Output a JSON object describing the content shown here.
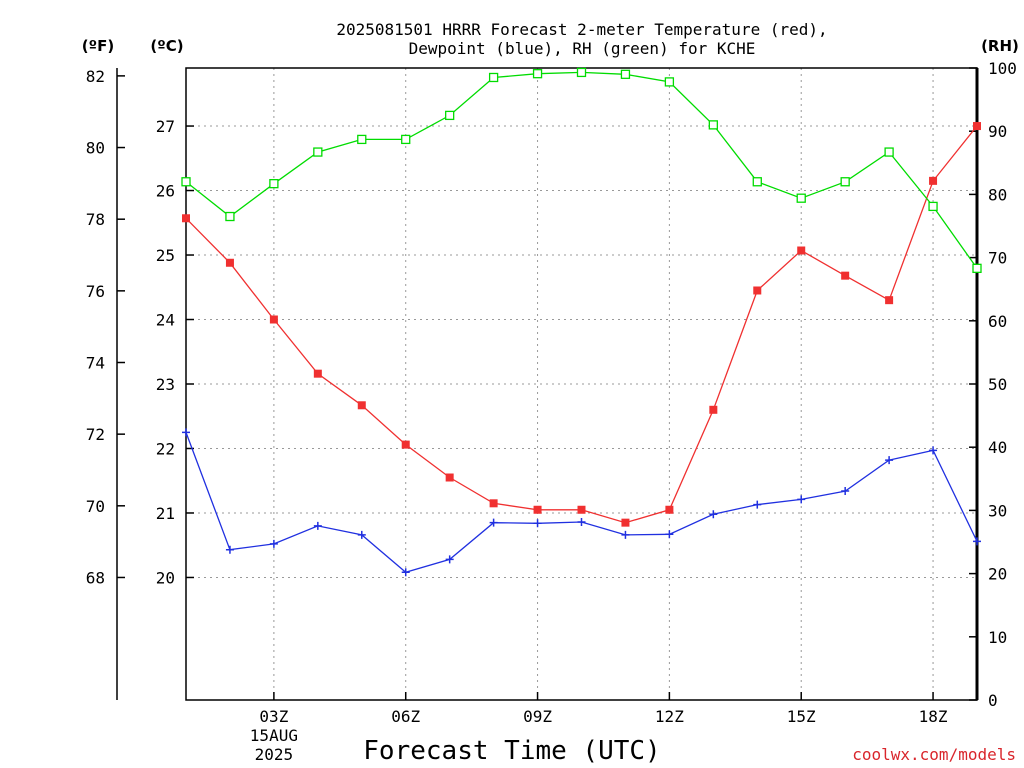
{
  "chart_data": {
    "type": "line",
    "title_line1": "2025081501 HRRR Forecast 2-meter Temperature (red),",
    "title_line2": "Dewpoint (blue), RH (green) for KCHE",
    "xlabel": "Forecast Time (UTC)",
    "credit": "coolwx.com/models",
    "units": {
      "left_outer": "(ºF)",
      "left_inner": "(ºC)",
      "right": "(RH)"
    },
    "x_hours": [
      1,
      2,
      3,
      4,
      5,
      6,
      7,
      8,
      9,
      10,
      11,
      12,
      13,
      14,
      15,
      16,
      17,
      18,
      19
    ],
    "x_ticks": [
      {
        "hour": 3,
        "label": "03Z",
        "sub1": "15AUG",
        "sub2": "2025"
      },
      {
        "hour": 6,
        "label": "06Z"
      },
      {
        "hour": 9,
        "label": "09Z"
      },
      {
        "hour": 12,
        "label": "12Z"
      },
      {
        "hour": 15,
        "label": "15Z"
      },
      {
        "hour": 18,
        "label": "18Z"
      }
    ],
    "xlim": [
      1,
      19
    ],
    "celsius_axis": {
      "ylim": [
        18.1,
        27.9
      ],
      "ticks": [
        20,
        21,
        22,
        23,
        24,
        25,
        26,
        27
      ]
    },
    "fahrenheit_axis": {
      "ticks": [
        68,
        70,
        72,
        74,
        76,
        78,
        80,
        82
      ]
    },
    "rh_axis": {
      "ylim": [
        0,
        100
      ],
      "ticks": [
        0,
        10,
        20,
        30,
        40,
        50,
        60,
        70,
        80,
        90,
        100
      ]
    },
    "grid": true,
    "series": [
      {
        "name": "Temperature",
        "unit": "C",
        "color": "#f03030",
        "marker": "filled-square",
        "values": [
          25.57,
          24.88,
          24.0,
          23.16,
          22.67,
          22.06,
          21.55,
          21.15,
          21.05,
          21.05,
          20.85,
          21.05,
          22.6,
          24.45,
          25.07,
          24.68,
          24.3,
          26.15,
          27.0
        ]
      },
      {
        "name": "Dewpoint",
        "unit": "C",
        "color": "#2030e0",
        "marker": "plus",
        "values": [
          22.25,
          20.43,
          20.52,
          20.8,
          20.66,
          20.08,
          20.28,
          20.85,
          20.84,
          20.86,
          20.66,
          20.67,
          20.98,
          21.13,
          21.21,
          21.34,
          21.82,
          21.97,
          20.56
        ]
      },
      {
        "name": "RH",
        "unit": "%",
        "color": "#00dc00",
        "marker": "open-square",
        "values": [
          82,
          76.5,
          81.7,
          86.7,
          88.7,
          88.7,
          92.5,
          98.5,
          99.1,
          99.3,
          99.0,
          97.8,
          91.0,
          82.0,
          79.4,
          82.0,
          86.7,
          78.1,
          68.3
        ]
      }
    ]
  }
}
